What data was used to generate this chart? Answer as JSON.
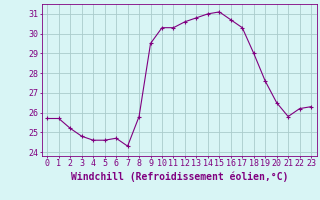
{
  "x": [
    0,
    1,
    2,
    3,
    4,
    5,
    6,
    7,
    8,
    9,
    10,
    11,
    12,
    13,
    14,
    15,
    16,
    17,
    18,
    19,
    20,
    21,
    22,
    23
  ],
  "y": [
    25.7,
    25.7,
    25.2,
    24.8,
    24.6,
    24.6,
    24.7,
    24.3,
    25.8,
    29.5,
    30.3,
    30.3,
    30.6,
    30.8,
    31.0,
    31.1,
    30.7,
    30.3,
    29.0,
    27.6,
    26.5,
    25.8,
    26.2,
    26.3
  ],
  "line_color": "#800080",
  "marker": "+",
  "marker_size": 3,
  "marker_linewidth": 0.8,
  "line_width": 0.8,
  "bg_color": "#d8f5f5",
  "grid_color": "#aacccc",
  "xlabel": "Windchill (Refroidissement éolien,°C)",
  "ylim": [
    23.8,
    31.5
  ],
  "yticks": [
    24,
    25,
    26,
    27,
    28,
    29,
    30,
    31
  ],
  "xticks": [
    0,
    1,
    2,
    3,
    4,
    5,
    6,
    7,
    8,
    9,
    10,
    11,
    12,
    13,
    14,
    15,
    16,
    17,
    18,
    19,
    20,
    21,
    22,
    23
  ],
  "tick_fontsize": 6,
  "xlabel_fontsize": 7,
  "label_color": "#800080",
  "spine_color": "#800080"
}
